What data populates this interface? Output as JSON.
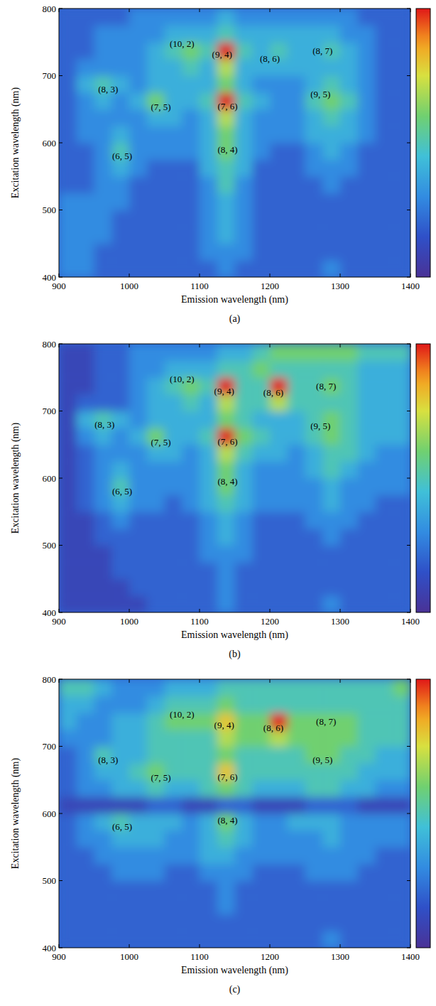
{
  "chart_data": [
    {
      "type": "heatmap",
      "label": "(a)",
      "x_label": "Emission wavelength (nm)",
      "y_label": "Excitation wavelength (nm)",
      "xlim": [
        900,
        1400
      ],
      "ylim": [
        400,
        800
      ],
      "xticks": [
        900,
        1000,
        1100,
        1200,
        1300,
        1400
      ],
      "yticks": [
        400,
        500,
        600,
        700,
        800
      ],
      "x": [
        912.5,
        937.5,
        962.5,
        987.5,
        1012.5,
        1037.5,
        1062.5,
        1087.5,
        1112.5,
        1137.5,
        1162.5,
        1187.5,
        1212.5,
        1237.5,
        1262.5,
        1287.5,
        1312.5,
        1337.5,
        1362.5,
        1387.5
      ],
      "y": [
        412.5,
        437.5,
        462.5,
        487.5,
        512.5,
        537.5,
        562.5,
        587.5,
        612.5,
        637.5,
        662.5,
        687.5,
        712.5,
        737.5,
        762.5,
        787.5
      ],
      "z": [
        [
          3,
          3,
          2,
          2,
          2,
          2,
          2,
          2,
          2,
          3,
          2,
          2,
          2,
          2,
          2,
          3,
          2,
          2,
          2,
          2
        ],
        [
          3,
          3,
          2,
          2,
          2,
          2,
          2,
          2,
          3,
          3,
          3,
          2,
          2,
          2,
          2,
          2,
          2,
          2,
          2,
          2
        ],
        [
          3,
          3,
          3,
          2,
          2,
          2,
          2,
          2,
          3,
          4,
          3,
          2,
          2,
          2,
          2,
          2,
          2,
          2,
          2,
          2
        ],
        [
          3,
          3,
          3,
          2,
          2,
          2,
          2,
          2,
          3,
          4,
          3,
          2,
          2,
          2,
          2,
          2,
          2,
          2,
          2,
          2
        ],
        [
          3,
          3,
          3,
          3,
          2,
          2,
          2,
          2,
          3,
          4,
          3,
          2,
          2,
          2,
          2,
          2,
          2,
          2,
          2,
          2
        ],
        [
          2,
          2,
          3,
          3,
          2,
          2,
          2,
          2,
          3,
          5,
          3,
          2,
          2,
          2,
          2,
          3,
          2,
          2,
          2,
          2
        ],
        [
          2,
          2,
          3,
          4,
          3,
          2,
          2,
          2,
          4,
          5,
          4,
          2,
          2,
          2,
          3,
          3,
          3,
          2,
          2,
          2
        ],
        [
          2,
          2,
          3,
          5,
          3,
          3,
          3,
          3,
          4,
          6,
          4,
          3,
          2,
          2,
          3,
          4,
          3,
          2,
          2,
          2
        ],
        [
          2,
          3,
          3,
          4,
          3,
          3,
          3,
          3,
          4,
          6,
          4,
          3,
          3,
          3,
          4,
          4,
          4,
          3,
          2,
          2
        ],
        [
          2,
          3,
          3,
          3,
          3,
          4,
          4,
          3,
          4,
          7,
          4,
          3,
          3,
          3,
          4,
          5,
          4,
          3,
          2,
          2
        ],
        [
          2,
          3,
          4,
          3,
          4,
          6,
          4,
          4,
          5,
          10,
          5,
          4,
          3,
          3,
          5,
          6,
          5,
          3,
          2,
          2
        ],
        [
          2,
          4,
          5,
          4,
          3,
          4,
          4,
          4,
          4,
          6,
          4,
          3,
          3,
          3,
          4,
          5,
          4,
          3,
          2,
          2
        ],
        [
          2,
          3,
          3,
          3,
          3,
          4,
          4,
          5,
          4,
          7,
          4,
          4,
          4,
          4,
          4,
          4,
          4,
          3,
          2,
          2
        ],
        [
          2,
          2,
          3,
          3,
          3,
          4,
          5,
          6,
          5,
          10,
          5,
          4,
          5,
          4,
          4,
          5,
          4,
          3,
          2,
          2
        ],
        [
          2,
          2,
          3,
          3,
          3,
          3,
          4,
          4,
          4,
          5,
          4,
          4,
          4,
          4,
          4,
          4,
          3,
          3,
          2,
          2
        ],
        [
          2,
          2,
          2,
          2,
          3,
          3,
          3,
          3,
          3,
          4,
          3,
          3,
          3,
          3,
          3,
          3,
          3,
          2,
          2,
          2
        ]
      ],
      "colorbar": {
        "range": [
          0,
          10
        ]
      },
      "annotations": [
        {
          "text": "(10, 2)",
          "x": 1075,
          "y": 748
        },
        {
          "text": "(9, 4)",
          "x": 1132,
          "y": 732
        },
        {
          "text": "(8, 6)",
          "x": 1200,
          "y": 725
        },
        {
          "text": "(8, 7)",
          "x": 1275,
          "y": 737
        },
        {
          "text": "(8, 3)",
          "x": 970,
          "y": 680
        },
        {
          "text": "(7, 5)",
          "x": 1045,
          "y": 653
        },
        {
          "text": "(7, 6)",
          "x": 1140,
          "y": 655
        },
        {
          "text": "(9, 5)",
          "x": 1272,
          "y": 672
        },
        {
          "text": "(6, 5)",
          "x": 990,
          "y": 580
        },
        {
          "text": "(8, 4)",
          "x": 1140,
          "y": 590
        }
      ]
    },
    {
      "type": "heatmap",
      "label": "(b)",
      "x_label": "Emission wavelength (nm)",
      "y_label": "Excitation wavelength (nm)",
      "xlim": [
        900,
        1400
      ],
      "ylim": [
        400,
        800
      ],
      "xticks": [
        900,
        1000,
        1100,
        1200,
        1300,
        1400
      ],
      "yticks": [
        400,
        500,
        600,
        700,
        800
      ],
      "x": [
        912.5,
        937.5,
        962.5,
        987.5,
        1012.5,
        1037.5,
        1062.5,
        1087.5,
        1112.5,
        1137.5,
        1162.5,
        1187.5,
        1212.5,
        1237.5,
        1262.5,
        1287.5,
        1312.5,
        1337.5,
        1362.5,
        1387.5
      ],
      "y": [
        412.5,
        437.5,
        462.5,
        487.5,
        512.5,
        537.5,
        562.5,
        587.5,
        612.5,
        637.5,
        662.5,
        687.5,
        712.5,
        737.5,
        762.5,
        787.5
      ],
      "z": [
        [
          1,
          1,
          1,
          1,
          1,
          2,
          2,
          2,
          2,
          3,
          2,
          2,
          2,
          2,
          2,
          3,
          2,
          2,
          2,
          2
        ],
        [
          1,
          1,
          1,
          1,
          2,
          2,
          2,
          2,
          2,
          3,
          2,
          2,
          2,
          2,
          2,
          2,
          2,
          2,
          2,
          2
        ],
        [
          1,
          1,
          1,
          2,
          2,
          2,
          2,
          2,
          2,
          3,
          2,
          2,
          2,
          2,
          2,
          2,
          2,
          2,
          2,
          2
        ],
        [
          1,
          1,
          1,
          2,
          2,
          2,
          2,
          2,
          3,
          3,
          3,
          2,
          2,
          2,
          2,
          2,
          2,
          2,
          2,
          2
        ],
        [
          1,
          1,
          2,
          2,
          2,
          2,
          2,
          2,
          3,
          4,
          3,
          2,
          2,
          2,
          2,
          3,
          2,
          2,
          2,
          2
        ],
        [
          1,
          1,
          2,
          3,
          2,
          2,
          2,
          2,
          3,
          4,
          3,
          2,
          2,
          2,
          3,
          3,
          3,
          2,
          2,
          2
        ],
        [
          1,
          2,
          3,
          4,
          3,
          3,
          2,
          3,
          4,
          5,
          4,
          3,
          3,
          3,
          3,
          4,
          3,
          3,
          2,
          2
        ],
        [
          1,
          2,
          3,
          5,
          3,
          3,
          3,
          3,
          4,
          6,
          4,
          3,
          3,
          3,
          3,
          4,
          3,
          3,
          3,
          3
        ],
        [
          1,
          2,
          3,
          4,
          3,
          3,
          3,
          3,
          4,
          6,
          4,
          3,
          3,
          3,
          4,
          5,
          4,
          3,
          3,
          3
        ],
        [
          1,
          2,
          3,
          3,
          3,
          4,
          4,
          3,
          4,
          7,
          5,
          4,
          4,
          3,
          4,
          5,
          5,
          4,
          3,
          3
        ],
        [
          1,
          3,
          4,
          3,
          4,
          6,
          4,
          4,
          5,
          10,
          6,
          5,
          4,
          4,
          5,
          6,
          5,
          4,
          4,
          4
        ],
        [
          1,
          4,
          5,
          4,
          3,
          4,
          4,
          4,
          4,
          6,
          5,
          4,
          4,
          4,
          5,
          6,
          5,
          4,
          4,
          4
        ],
        [
          1,
          2,
          2,
          2,
          3,
          4,
          4,
          5,
          4,
          7,
          5,
          5,
          7,
          5,
          5,
          5,
          5,
          4,
          4,
          4
        ],
        [
          1,
          1,
          2,
          2,
          3,
          4,
          5,
          6,
          5,
          10,
          5,
          5,
          10,
          5,
          5,
          6,
          5,
          4,
          4,
          4
        ],
        [
          1,
          1,
          2,
          2,
          3,
          3,
          4,
          4,
          4,
          5,
          5,
          6,
          5,
          5,
          5,
          5,
          5,
          4,
          4,
          4
        ],
        [
          1,
          1,
          2,
          2,
          3,
          3,
          3,
          3,
          3,
          4,
          4,
          5,
          6,
          6,
          6,
          6,
          6,
          5,
          5,
          5
        ]
      ],
      "colorbar": {
        "range": [
          0,
          10
        ]
      },
      "annotations": [
        {
          "text": "(10, 2)",
          "x": 1075,
          "y": 748
        },
        {
          "text": "(9, 4)",
          "x": 1135,
          "y": 730
        },
        {
          "text": "(8, 6)",
          "x": 1205,
          "y": 728
        },
        {
          "text": "(8, 7)",
          "x": 1280,
          "y": 737
        },
        {
          "text": "(8, 3)",
          "x": 965,
          "y": 680
        },
        {
          "text": "(7, 5)",
          "x": 1045,
          "y": 653
        },
        {
          "text": "(7, 6)",
          "x": 1140,
          "y": 655
        },
        {
          "text": "(9, 5)",
          "x": 1272,
          "y": 678
        },
        {
          "text": "(6, 5)",
          "x": 990,
          "y": 580
        },
        {
          "text": "(8, 4)",
          "x": 1140,
          "y": 595
        }
      ]
    },
    {
      "type": "heatmap",
      "label": "(c)",
      "x_label": "Emission wavelength (nm)",
      "y_label": "Excitation wavelength (nm)",
      "xlim": [
        900,
        1400
      ],
      "ylim": [
        400,
        800
      ],
      "xticks": [
        900,
        1000,
        1100,
        1200,
        1300,
        1400
      ],
      "yticks": [
        400,
        500,
        600,
        700,
        800
      ],
      "x": [
        912.5,
        937.5,
        962.5,
        987.5,
        1012.5,
        1037.5,
        1062.5,
        1087.5,
        1112.5,
        1137.5,
        1162.5,
        1187.5,
        1212.5,
        1237.5,
        1262.5,
        1287.5,
        1312.5,
        1337.5,
        1362.5,
        1387.5
      ],
      "y": [
        412.5,
        437.5,
        462.5,
        487.5,
        512.5,
        537.5,
        562.5,
        587.5,
        612.5,
        637.5,
        662.5,
        687.5,
        712.5,
        737.5,
        762.5,
        787.5
      ],
      "z": [
        [
          2,
          2,
          2,
          2,
          2,
          2,
          2,
          2,
          2,
          2,
          2,
          2,
          2,
          2,
          2,
          3,
          2,
          2,
          2,
          2
        ],
        [
          2,
          2,
          2,
          2,
          2,
          2,
          2,
          2,
          2,
          2,
          2,
          2,
          2,
          2,
          2,
          2,
          2,
          2,
          2,
          2
        ],
        [
          2,
          2,
          2,
          2,
          2,
          2,
          2,
          2,
          2,
          3,
          2,
          2,
          2,
          2,
          2,
          2,
          2,
          2,
          2,
          2
        ],
        [
          2,
          2,
          2,
          2,
          2,
          2,
          2,
          2,
          2,
          3,
          2,
          2,
          2,
          2,
          2,
          2,
          2,
          2,
          2,
          2
        ],
        [
          2,
          2,
          2,
          3,
          3,
          3,
          2,
          2,
          3,
          3,
          3,
          2,
          2,
          2,
          3,
          3,
          3,
          2,
          2,
          2
        ],
        [
          2,
          2,
          3,
          3,
          3,
          3,
          3,
          3,
          4,
          4,
          3,
          3,
          3,
          3,
          3,
          3,
          3,
          3,
          2,
          2
        ],
        [
          2,
          3,
          3,
          4,
          4,
          4,
          3,
          3,
          4,
          5,
          4,
          3,
          3,
          3,
          3,
          4,
          3,
          3,
          3,
          3
        ],
        [
          2,
          3,
          4,
          5,
          4,
          4,
          4,
          3,
          4,
          6,
          4,
          3,
          3,
          4,
          4,
          4,
          3,
          3,
          3,
          3
        ],
        [
          1,
          1,
          1,
          1,
          1,
          2,
          2,
          1,
          1,
          2,
          2,
          1,
          1,
          1,
          2,
          2,
          2,
          1,
          1,
          1
        ],
        [
          2,
          3,
          3,
          4,
          4,
          5,
          4,
          4,
          5,
          6,
          5,
          4,
          4,
          4,
          5,
          5,
          4,
          4,
          3,
          3
        ],
        [
          2,
          3,
          4,
          4,
          5,
          6,
          5,
          5,
          5,
          8,
          5,
          5,
          5,
          5,
          5,
          5,
          5,
          4,
          4,
          4
        ],
        [
          2,
          3,
          5,
          4,
          4,
          5,
          5,
          5,
          5,
          6,
          5,
          5,
          5,
          5,
          6,
          6,
          5,
          5,
          4,
          4
        ],
        [
          3,
          3,
          3,
          4,
          4,
          5,
          5,
          5,
          5,
          7,
          6,
          6,
          7,
          6,
          6,
          6,
          6,
          5,
          5,
          5
        ],
        [
          4,
          3,
          3,
          4,
          4,
          5,
          6,
          6,
          6,
          8,
          6,
          6,
          10,
          6,
          6,
          6,
          6,
          5,
          5,
          5
        ],
        [
          4,
          4,
          3,
          3,
          3,
          4,
          5,
          5,
          5,
          6,
          5,
          5,
          5,
          5,
          5,
          5,
          5,
          5,
          5,
          5
        ],
        [
          5,
          5,
          4,
          3,
          3,
          3,
          4,
          4,
          4,
          5,
          5,
          5,
          5,
          5,
          5,
          5,
          5,
          5,
          5,
          6
        ]
      ],
      "colorbar": {
        "range": [
          0,
          10
        ]
      },
      "annotations": [
        {
          "text": "(10, 2)",
          "x": 1075,
          "y": 748
        },
        {
          "text": "(9, 4)",
          "x": 1135,
          "y": 732
        },
        {
          "text": "(8, 6)",
          "x": 1205,
          "y": 728
        },
        {
          "text": "(8, 7)",
          "x": 1280,
          "y": 737
        },
        {
          "text": "(8, 3)",
          "x": 970,
          "y": 680
        },
        {
          "text": "(7, 5)",
          "x": 1045,
          "y": 653
        },
        {
          "text": "(7, 6)",
          "x": 1140,
          "y": 655
        },
        {
          "text": "(9, 5)",
          "x": 1275,
          "y": 680
        },
        {
          "text": "(6, 5)",
          "x": 990,
          "y": 580
        },
        {
          "text": "(8, 4)",
          "x": 1140,
          "y": 590
        }
      ]
    }
  ]
}
